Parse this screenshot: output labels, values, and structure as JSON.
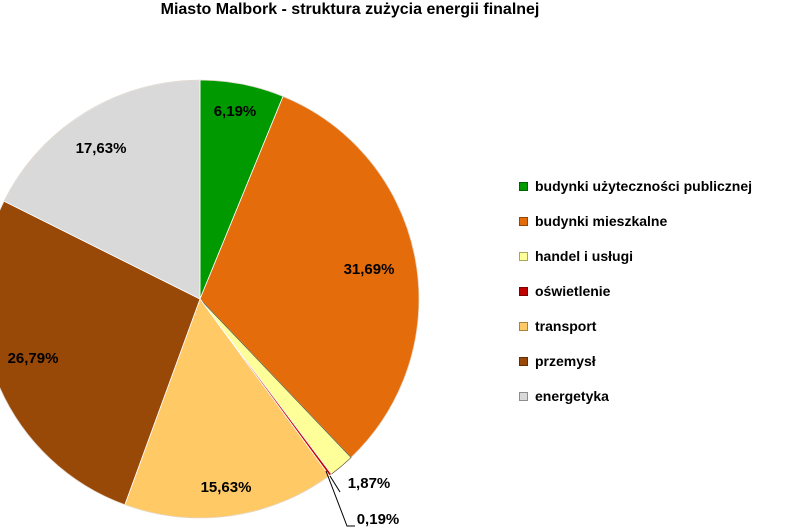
{
  "chart_data": {
    "type": "pie",
    "title": "Miasto Malbork - struktura zużycia energii finalnej",
    "legend_position": "right",
    "slices": [
      {
        "name": "budynki użyteczności publicznej",
        "value": 6.19,
        "label": "6,19%",
        "color": "#009900"
      },
      {
        "name": "budynki mieszkalne",
        "value": 31.69,
        "label": "31,69%",
        "color": "#E46C0A"
      },
      {
        "name": "handel i usługi",
        "value": 1.87,
        "label": "1,87%",
        "color": "#FFFF99"
      },
      {
        "name": "oświetlenie",
        "value": 0.19,
        "label": "0,19%",
        "color": "#C00000"
      },
      {
        "name": "transport",
        "value": 15.63,
        "label": "15,63%",
        "color": "#FFC966"
      },
      {
        "name": "przemysł",
        "value": 26.79,
        "label": "26,79%",
        "color": "#984807"
      },
      {
        "name": "energetyka",
        "value": 17.63,
        "label": "17,63%",
        "color": "#D9D9D9"
      }
    ]
  }
}
